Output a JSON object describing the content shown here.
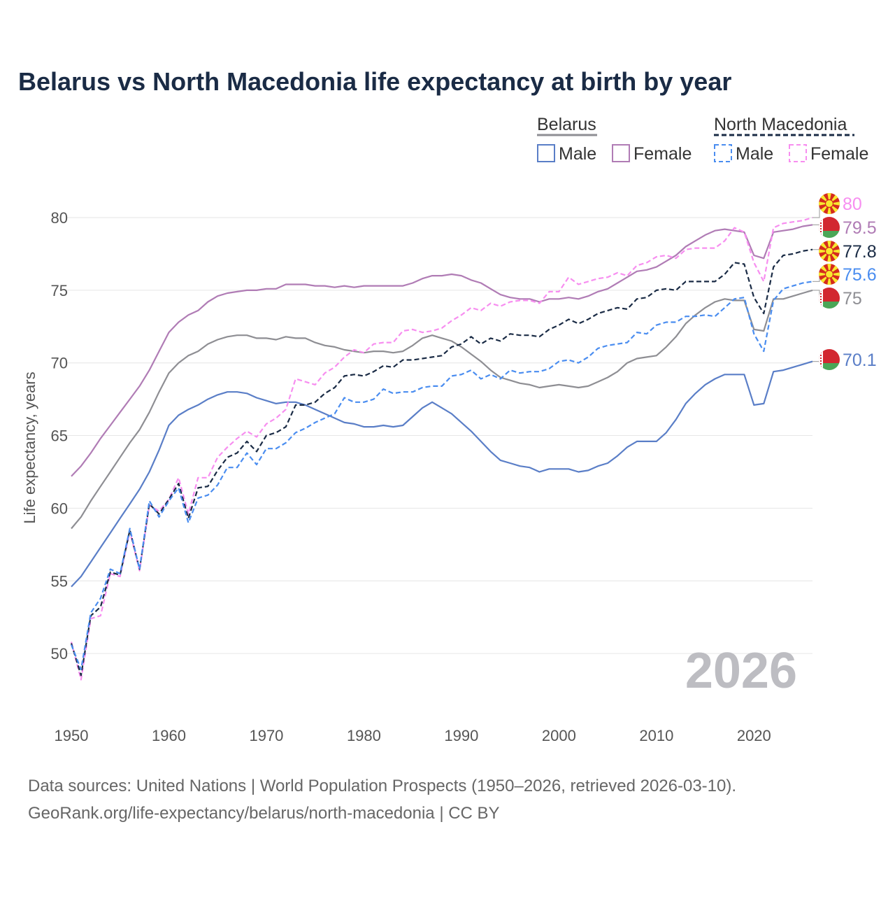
{
  "colors": {
    "belarus_total": "#8e8e93",
    "belarus_male": "#5a7ec7",
    "belarus_female": "#b07cb5",
    "nm_total": "#1a2b45",
    "nm_male": "#4a8df0",
    "nm_female": "#f78ef0"
  },
  "chart_data": {
    "type": "line",
    "title": "Belarus vs North Macedonia life expectancy at birth by year",
    "xlabel": "",
    "ylabel": "Life expectancy, years",
    "xlim": [
      1950,
      2026
    ],
    "ylim": [
      47,
      82
    ],
    "x_ticks": [
      1950,
      1960,
      1970,
      1980,
      1990,
      2000,
      2010,
      2020
    ],
    "x_tick_labels": [
      "1950",
      "1960",
      "1970",
      "1980",
      "1990",
      "2000",
      "2010",
      "2020"
    ],
    "y_ticks": [
      50,
      55,
      60,
      65,
      70,
      75,
      80
    ],
    "y_tick_labels": [
      "50",
      "55",
      "60",
      "65",
      "70",
      "75",
      "80"
    ],
    "grid": true,
    "watermark_year": "2026",
    "legend": {
      "placement": "top-right",
      "groups": [
        {
          "name": "Belarus",
          "items": [
            "Male",
            "Female"
          ]
        },
        {
          "name": "North Macedonia",
          "items": [
            "Male",
            "Female"
          ]
        }
      ]
    },
    "x_start": 1950,
    "series": [
      {
        "key": "nm_female",
        "name": "North Macedonia Female",
        "country": "nm",
        "dashed": true,
        "end_label": "80",
        "values": [
          50.8,
          48.2,
          52.4,
          52.6,
          55.5,
          55.3,
          58.4,
          55.7,
          60.2,
          59.8,
          60.6,
          62.1,
          59.6,
          62.1,
          62.1,
          63.5,
          64.2,
          64.8,
          65.3,
          64.9,
          65.8,
          66.2,
          66.8,
          68.9,
          68.7,
          68.5,
          69.3,
          69.7,
          70.4,
          70.9,
          70.7,
          71.3,
          71.4,
          71.4,
          72.2,
          72.3,
          72.1,
          72.2,
          72.4,
          72.9,
          73.3,
          73.8,
          73.6,
          74.1,
          73.9,
          74.2,
          74.3,
          74.3,
          74.1,
          74.9,
          74.9,
          75.9,
          75.4,
          75.6,
          75.8,
          75.9,
          76.2,
          76.0,
          76.7,
          76.9,
          77.3,
          77.4,
          77.2,
          77.8,
          77.9,
          77.9,
          77.9,
          78.4,
          79.3,
          79.0,
          76.9,
          75.6,
          79.3,
          79.6,
          79.7,
          79.8,
          80.0
        ]
      },
      {
        "key": "belarus_female",
        "name": "Belarus Female",
        "country": "by",
        "dashed": false,
        "end_label": "79.5",
        "values": [
          62.2,
          62.9,
          63.8,
          64.8,
          65.7,
          66.6,
          67.5,
          68.4,
          69.5,
          70.8,
          72.1,
          72.8,
          73.3,
          73.6,
          74.2,
          74.6,
          74.8,
          74.9,
          75.0,
          75.0,
          75.1,
          75.1,
          75.4,
          75.4,
          75.4,
          75.3,
          75.3,
          75.2,
          75.3,
          75.2,
          75.3,
          75.3,
          75.3,
          75.3,
          75.3,
          75.5,
          75.8,
          76.0,
          76.0,
          76.1,
          76.0,
          75.7,
          75.5,
          75.1,
          74.7,
          74.5,
          74.4,
          74.4,
          74.2,
          74.4,
          74.4,
          74.5,
          74.4,
          74.6,
          74.9,
          75.1,
          75.5,
          75.9,
          76.3,
          76.4,
          76.6,
          77.0,
          77.4,
          78.0,
          78.4,
          78.8,
          79.1,
          79.2,
          79.1,
          79.0,
          77.4,
          77.2,
          79.0,
          79.1,
          79.2,
          79.4,
          79.5
        ]
      },
      {
        "key": "nm_total",
        "name": "North Macedonia Total",
        "country": "nm",
        "dashed": true,
        "end_label": "77.8",
        "values": [
          50.7,
          48.5,
          52.6,
          53.2,
          55.6,
          55.4,
          58.5,
          55.8,
          60.3,
          59.6,
          60.6,
          61.7,
          59.3,
          61.4,
          61.5,
          62.6,
          63.5,
          63.8,
          64.6,
          63.9,
          65.0,
          65.2,
          65.6,
          67.1,
          67.1,
          67.3,
          67.9,
          68.3,
          69.1,
          69.2,
          69.1,
          69.4,
          69.8,
          69.7,
          70.2,
          70.2,
          70.3,
          70.4,
          70.5,
          71.1,
          71.3,
          71.8,
          71.3,
          71.7,
          71.5,
          72.0,
          71.9,
          71.9,
          71.8,
          72.3,
          72.6,
          73.0,
          72.7,
          73.0,
          73.4,
          73.6,
          73.8,
          73.7,
          74.4,
          74.5,
          75.0,
          75.1,
          75.0,
          75.6,
          75.6,
          75.6,
          75.6,
          76.1,
          76.9,
          76.8,
          74.5,
          73.4,
          76.6,
          77.4,
          77.5,
          77.7,
          77.8
        ]
      },
      {
        "key": "nm_male",
        "name": "North Macedonia Male",
        "country": "nm",
        "dashed": true,
        "end_label": "75.6",
        "values": [
          50.6,
          48.9,
          52.8,
          53.8,
          55.8,
          55.5,
          58.6,
          55.8,
          60.5,
          59.4,
          60.5,
          61.4,
          59.0,
          60.7,
          60.9,
          61.6,
          62.8,
          62.8,
          63.8,
          63.0,
          64.1,
          64.1,
          64.5,
          65.2,
          65.5,
          65.9,
          66.2,
          66.5,
          67.6,
          67.3,
          67.3,
          67.5,
          68.2,
          67.9,
          68.0,
          68.0,
          68.3,
          68.4,
          68.4,
          69.1,
          69.2,
          69.5,
          68.9,
          69.2,
          68.9,
          69.5,
          69.3,
          69.4,
          69.4,
          69.6,
          70.1,
          70.2,
          70.0,
          70.4,
          71.0,
          71.2,
          71.3,
          71.4,
          72.1,
          72.0,
          72.6,
          72.8,
          72.8,
          73.2,
          73.2,
          73.3,
          73.2,
          73.8,
          74.4,
          74.5,
          72.0,
          70.8,
          74.3,
          75.1,
          75.3,
          75.5,
          75.6
        ]
      },
      {
        "key": "belarus_total",
        "name": "Belarus Total",
        "country": "by",
        "dashed": false,
        "end_label": "75",
        "values": [
          58.6,
          59.4,
          60.5,
          61.5,
          62.5,
          63.5,
          64.5,
          65.4,
          66.6,
          68.0,
          69.3,
          70.0,
          70.5,
          70.8,
          71.3,
          71.6,
          71.8,
          71.9,
          71.9,
          71.7,
          71.7,
          71.6,
          71.8,
          71.7,
          71.7,
          71.4,
          71.2,
          71.1,
          70.9,
          70.8,
          70.7,
          70.8,
          70.8,
          70.7,
          70.8,
          71.2,
          71.7,
          71.9,
          71.7,
          71.5,
          71.1,
          70.6,
          70.1,
          69.5,
          69.0,
          68.8,
          68.6,
          68.5,
          68.3,
          68.4,
          68.5,
          68.4,
          68.3,
          68.4,
          68.7,
          69.0,
          69.4,
          70.0,
          70.3,
          70.4,
          70.5,
          71.1,
          71.8,
          72.7,
          73.3,
          73.8,
          74.2,
          74.4,
          74.3,
          74.3,
          72.3,
          72.2,
          74.4,
          74.4,
          74.6,
          74.8,
          75.0
        ]
      },
      {
        "key": "belarus_male",
        "name": "Belarus Male",
        "country": "by",
        "dashed": false,
        "end_label": "70.1",
        "values": [
          54.6,
          55.3,
          56.3,
          57.3,
          58.3,
          59.3,
          60.3,
          61.3,
          62.5,
          64.0,
          65.7,
          66.4,
          66.8,
          67.1,
          67.5,
          67.8,
          68.0,
          68.0,
          67.9,
          67.6,
          67.4,
          67.2,
          67.3,
          67.3,
          67.1,
          66.8,
          66.5,
          66.2,
          65.9,
          65.8,
          65.6,
          65.6,
          65.7,
          65.6,
          65.7,
          66.3,
          66.9,
          67.3,
          66.9,
          66.5,
          65.9,
          65.3,
          64.6,
          63.9,
          63.3,
          63.1,
          62.9,
          62.8,
          62.5,
          62.7,
          62.7,
          62.7,
          62.5,
          62.6,
          62.9,
          63.1,
          63.6,
          64.2,
          64.6,
          64.6,
          64.6,
          65.2,
          66.1,
          67.2,
          67.9,
          68.5,
          68.9,
          69.2,
          69.2,
          69.2,
          67.1,
          67.2,
          69.4,
          69.5,
          69.7,
          69.9,
          70.1
        ]
      }
    ]
  },
  "footer": {
    "source_line": "Data sources: United Nations | World Population Prospects (1950–2026, retrieved 2026-03-10).",
    "credit_line": "GeoRank.org/life-expectancy/belarus/north-macedonia | CC BY"
  }
}
